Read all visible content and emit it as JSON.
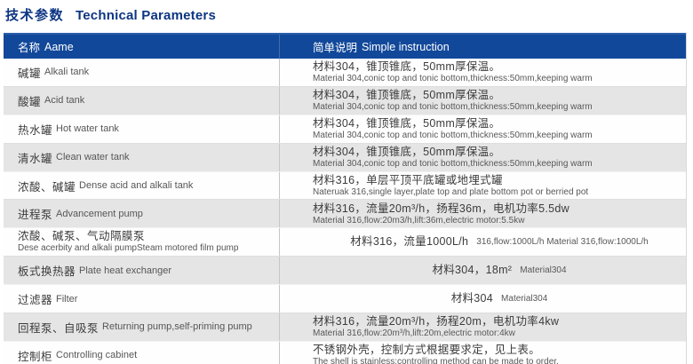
{
  "title": {
    "cn": "技术参数",
    "en": "Technical Parameters"
  },
  "colors": {
    "title_text": "#0d3583",
    "header_bg": "#12489a",
    "header_text": "#ffffff",
    "row_shaded_bg": "#e5e5e5",
    "row_plain_bg": "#fefefe"
  },
  "table": {
    "header": {
      "name_cn": "名称",
      "name_en": "Aame",
      "desc_cn": "简单说明",
      "desc_en": "Simple instruction"
    },
    "rows": [
      {
        "name_cn": "碱罐",
        "name_en": "Alkali tank",
        "desc_cn": "材料304，锥顶锥底，50mm厚保温。",
        "desc_en": "Material 304,conic top and tonic bottom,thickness:50mm,keeping warm",
        "shaded": false,
        "inline": false,
        "stacked_name": false
      },
      {
        "name_cn": "酸罐",
        "name_en": "Acid tank",
        "desc_cn": "材料304，锥顶锥底，50mm厚保温。",
        "desc_en": "Material 304,conic top and tonic bottom,thickness:50mm,keeping warm",
        "shaded": true,
        "inline": false,
        "stacked_name": false
      },
      {
        "name_cn": "热水罐",
        "name_en": "Hot water tank",
        "desc_cn": "材料304，锥顶锥底，50mm厚保温。",
        "desc_en": "Material 304,conic top and tonic bottom,thickness:50mm,keeping warm",
        "shaded": false,
        "inline": false,
        "stacked_name": false
      },
      {
        "name_cn": "清水罐",
        "name_en": "Clean water tank",
        "desc_cn": "材料304，锥顶锥底，50mm厚保温。",
        "desc_en": "Material 304,conic top and tonic bottom,thickness:50mm,keeping warm",
        "shaded": true,
        "inline": false,
        "stacked_name": false
      },
      {
        "name_cn": "浓酸、碱罐",
        "name_en": "Dense acid and alkali tank",
        "desc_cn": "材料316，单层平顶平底罐或地埋式罐",
        "desc_en": "Nateruak 316,single layer,plate top and plate bottom pot or berried pot",
        "shaded": false,
        "inline": false,
        "stacked_name": false
      },
      {
        "name_cn": "进程泵",
        "name_en": "Advancement pump",
        "desc_cn": "材料316，流量20m³/h，扬程36m，电机功率5.5dw",
        "desc_en": "Material 316,flow:20m3/h,lift:36m,electric motor:5.5kw",
        "shaded": true,
        "inline": false,
        "stacked_name": false
      },
      {
        "name_cn": "浓酸、碱泵、气动隔膜泵",
        "name_en": "Dese acerbity and alkali pumpSteam motored film pump",
        "desc_cn": "材料316，流量1000L/h",
        "desc_en": "316,flow:1000L/h  Material 316,flow:1000L/h",
        "shaded": false,
        "inline": true,
        "stacked_name": true
      },
      {
        "name_cn": "板式换热器",
        "name_en": "Plate heat exchanger",
        "desc_cn": "材料304，18m²",
        "desc_en": "Material304",
        "shaded": true,
        "inline": true,
        "stacked_name": false
      },
      {
        "name_cn": "过滤器",
        "name_en": "Filter",
        "desc_cn": "材料304",
        "desc_en": "Material304",
        "shaded": false,
        "inline": true,
        "stacked_name": false
      },
      {
        "name_cn": "回程泵、自吸泵",
        "name_en": "Returning pump,self-priming pump",
        "desc_cn": "材料316，流量20m³/h，扬程20m，电机功率4kw",
        "desc_en": "Material 316,flow:20m³/h,lift:20m,electric motor:4kw",
        "shaded": true,
        "inline": false,
        "stacked_name": false
      },
      {
        "name_cn": "控制柜",
        "name_en": "Controlling cabinet",
        "desc_cn": "不锈钢外壳，控制方式根据要求定，见上表。",
        "desc_en": "The shell is stainless;controlling method can be made to order.",
        "shaded": false,
        "inline": false,
        "stacked_name": false
      }
    ]
  }
}
